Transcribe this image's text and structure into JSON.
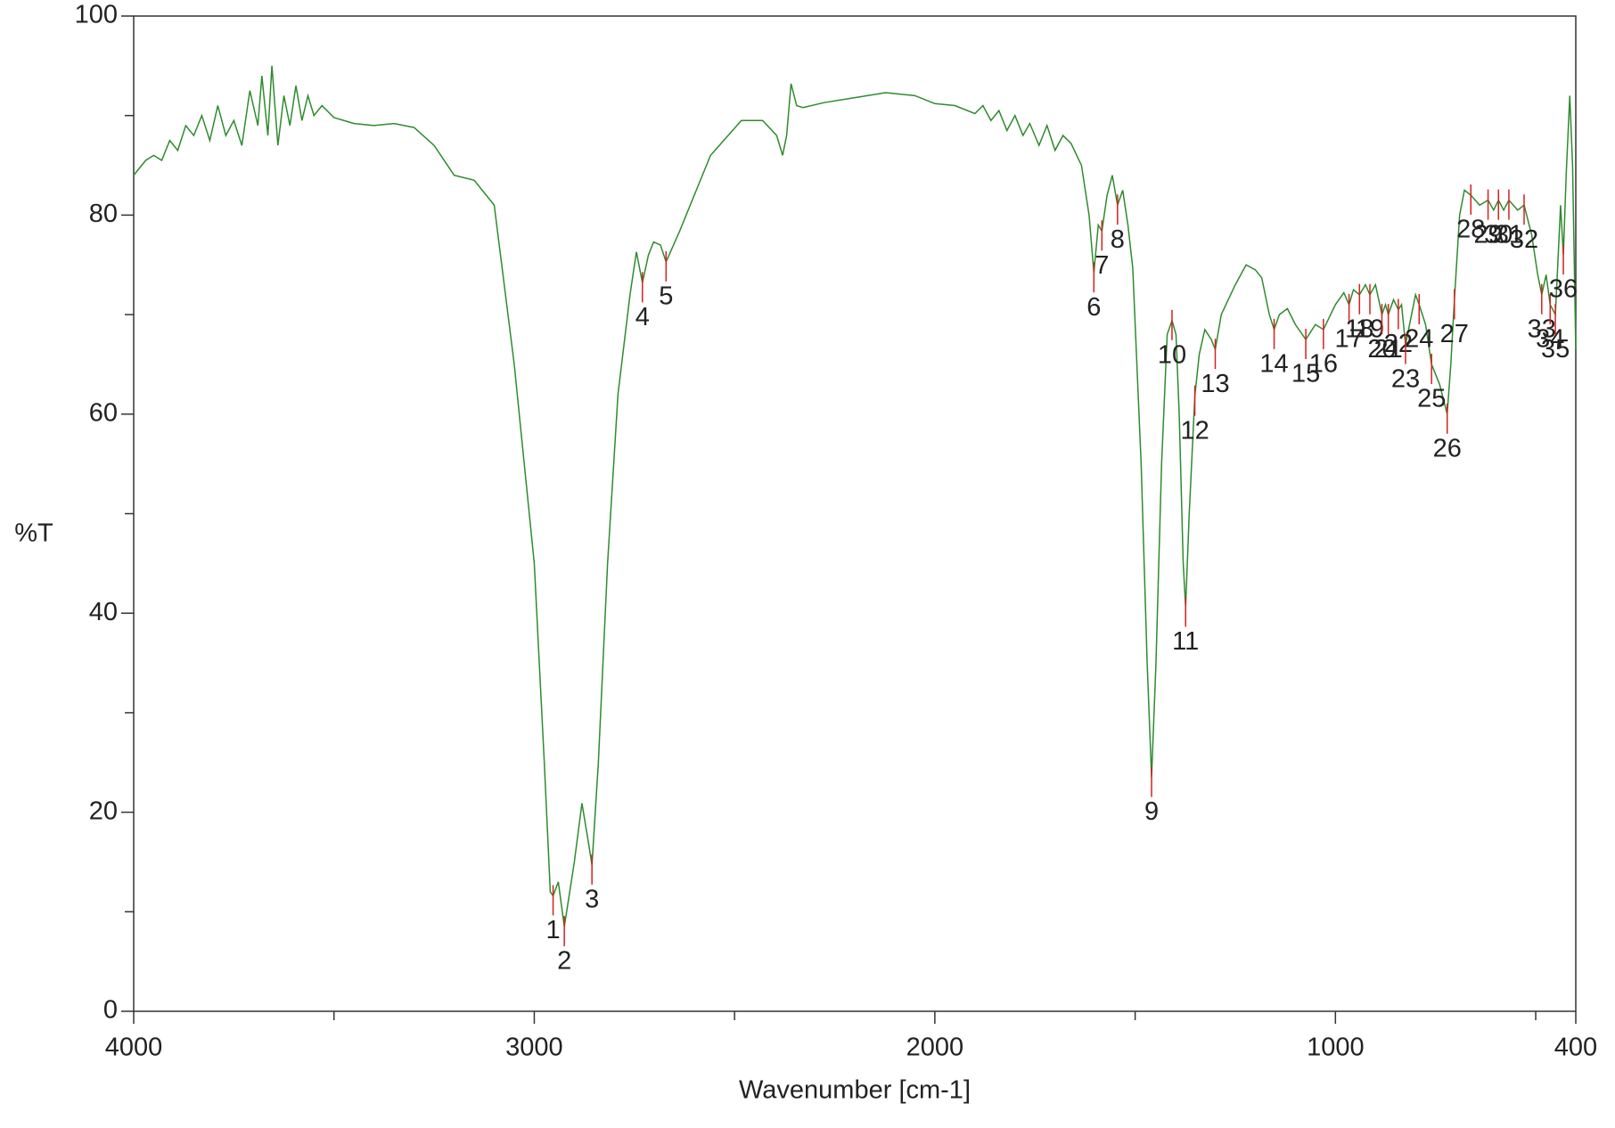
{
  "chart_data": {
    "type": "line",
    "xlabel": "Wavenumber [cm-1]",
    "ylabel": "%T",
    "xlim": [
      4000,
      400
    ],
    "ylim": [
      0,
      100
    ],
    "xticks": [
      4000,
      3000,
      2000,
      1000,
      400
    ],
    "xminorticks": [
      3500,
      2500,
      1500,
      500
    ],
    "yticks": [
      0,
      20,
      40,
      60,
      80,
      100
    ],
    "yminorticks": [
      10,
      30,
      50,
      70,
      90
    ],
    "series": [
      {
        "color": "#2e8b2e",
        "x": [
          4000,
          3970,
          3950,
          3930,
          3910,
          3890,
          3870,
          3850,
          3830,
          3810,
          3790,
          3770,
          3750,
          3730,
          3710,
          3690,
          3680,
          3665,
          3655,
          3640,
          3625,
          3610,
          3595,
          3580,
          3565,
          3550,
          3530,
          3500,
          3450,
          3400,
          3350,
          3300,
          3250,
          3200,
          3150,
          3100,
          3050,
          3000,
          2975,
          2960,
          2953,
          2940,
          2925,
          2900,
          2881,
          2865,
          2856,
          2840,
          2817,
          2791,
          2761,
          2745,
          2730,
          2715,
          2702,
          2685,
          2671,
          2637,
          2560,
          2483,
          2430,
          2395,
          2380,
          2370,
          2359,
          2345,
          2329,
          2277,
          2200,
          2123,
          2050,
          2000,
          1950,
          1900,
          1880,
          1860,
          1840,
          1820,
          1800,
          1780,
          1763,
          1740,
          1720,
          1700,
          1680,
          1660,
          1640,
          1634,
          1615,
          1603,
          1592,
          1583,
          1570,
          1557,
          1544,
          1531,
          1518,
          1506,
          1485,
          1470,
          1459,
          1448,
          1434,
          1420,
          1408,
          1398,
          1390,
          1380,
          1374,
          1365,
          1351,
          1340,
          1326,
          1310,
          1300,
          1285,
          1250,
          1223,
          1200,
          1184,
          1165,
          1153,
          1140,
          1120,
          1100,
          1074,
          1050,
          1030,
          1000,
          979,
          966,
          955,
          940,
          925,
          914,
          900,
          884,
          875,
          868,
          855,
          843,
          835,
          825,
          810,
          800,
          791,
          775,
          760,
          740,
          721,
          712,
          703,
          690,
          678,
          662,
          640,
          619,
          605,
          593,
          580,
          567,
          545,
          529,
          510,
          495,
          485,
          474,
          464,
          451,
          445,
          438,
          431,
          424,
          415,
          408,
          400
        ],
        "values": [
          84,
          85.5,
          86,
          85.5,
          87.5,
          86.5,
          89,
          88,
          90,
          87.5,
          91,
          88,
          89.5,
          87,
          92.5,
          89,
          94,
          88,
          95,
          87,
          92,
          89,
          93,
          89.5,
          92,
          90,
          91,
          89.8,
          89.2,
          89,
          89.2,
          88.8,
          87,
          84,
          83.5,
          81,
          65,
          45,
          25,
          12,
          11.6,
          13,
          8.5,
          15,
          20.9,
          17,
          14.7,
          25,
          45,
          62,
          72,
          76.3,
          73.2,
          76,
          77.3,
          77,
          75.3,
          78.4,
          86,
          89.5,
          89.5,
          88,
          86,
          88,
          93.2,
          91,
          90.8,
          91.3,
          91.8,
          92.3,
          92,
          91.2,
          91,
          90.2,
          91,
          89.5,
          90.5,
          88.5,
          90,
          88,
          89.2,
          87,
          89,
          86.5,
          88,
          87.2,
          85.5,
          85,
          80,
          74.2,
          79,
          78.4,
          82,
          84,
          81,
          82.5,
          79,
          74.7,
          55,
          35,
          23.5,
          35,
          55,
          68,
          69.4,
          68,
          60,
          45,
          40.6,
          50,
          61.8,
          66,
          68.5,
          67.5,
          66.5,
          70,
          73,
          75,
          74.5,
          73.7,
          70,
          68.5,
          70,
          70.6,
          69,
          67.5,
          69,
          68.5,
          71,
          72.2,
          71,
          72.5,
          72,
          73,
          72,
          73,
          70,
          71,
          70,
          71.5,
          70.5,
          71,
          67,
          70,
          72,
          71,
          69,
          65,
          63,
          60,
          65,
          71.5,
          80,
          82.5,
          82,
          81,
          81.5,
          80.5,
          81.5,
          80.5,
          81.5,
          80.5,
          81,
          78,
          74,
          72,
          74,
          71,
          70,
          75,
          81,
          76,
          84,
          92,
          85,
          66.5
        ]
      }
    ],
    "peaks": [
      {
        "label": "1",
        "x": 2953,
        "y": 11.6
      },
      {
        "label": "2",
        "x": 2925,
        "y": 8.5
      },
      {
        "label": "3",
        "x": 2856,
        "y": 14.7
      },
      {
        "label": "4",
        "x": 2730,
        "y": 73.2
      },
      {
        "label": "5",
        "x": 2671,
        "y": 75.3
      },
      {
        "label": "6",
        "x": 1603,
        "y": 74.2
      },
      {
        "label": "7",
        "x": 1583,
        "y": 78.4
      },
      {
        "label": "8",
        "x": 1544,
        "y": 81
      },
      {
        "label": "9",
        "x": 1459,
        "y": 23.5
      },
      {
        "label": "10",
        "x": 1408,
        "y": 69.4
      },
      {
        "label": "11",
        "x": 1374,
        "y": 40.6
      },
      {
        "label": "12",
        "x": 1351,
        "y": 61.8
      },
      {
        "label": "13",
        "x": 1300,
        "y": 66.5
      },
      {
        "label": "14",
        "x": 1153,
        "y": 68.5
      },
      {
        "label": "15",
        "x": 1074,
        "y": 67.5
      },
      {
        "label": "16",
        "x": 1030,
        "y": 68.5
      },
      {
        "label": "17",
        "x": 966,
        "y": 71
      },
      {
        "label": "18",
        "x": 940,
        "y": 72
      },
      {
        "label": "19",
        "x": 914,
        "y": 72
      },
      {
        "label": "20",
        "x": 884,
        "y": 70
      },
      {
        "label": "21",
        "x": 868,
        "y": 70
      },
      {
        "label": "22",
        "x": 843,
        "y": 70.5
      },
      {
        "label": "23",
        "x": 825,
        "y": 67
      },
      {
        "label": "24",
        "x": 791,
        "y": 71
      },
      {
        "label": "25",
        "x": 760,
        "y": 65
      },
      {
        "label": "26",
        "x": 721,
        "y": 60
      },
      {
        "label": "27",
        "x": 703,
        "y": 71.5
      },
      {
        "label": "28",
        "x": 662,
        "y": 82
      },
      {
        "label": "29",
        "x": 619,
        "y": 81.5
      },
      {
        "label": "30",
        "x": 593,
        "y": 81.5
      },
      {
        "label": "31",
        "x": 567,
        "y": 81.5
      },
      {
        "label": "32",
        "x": 529,
        "y": 81
      },
      {
        "label": "33",
        "x": 485,
        "y": 72
      },
      {
        "label": "34",
        "x": 464,
        "y": 71
      },
      {
        "label": "35",
        "x": 451,
        "y": 70
      },
      {
        "label": "36",
        "x": 431,
        "y": 76
      }
    ],
    "peak_color": "#d62020"
  }
}
